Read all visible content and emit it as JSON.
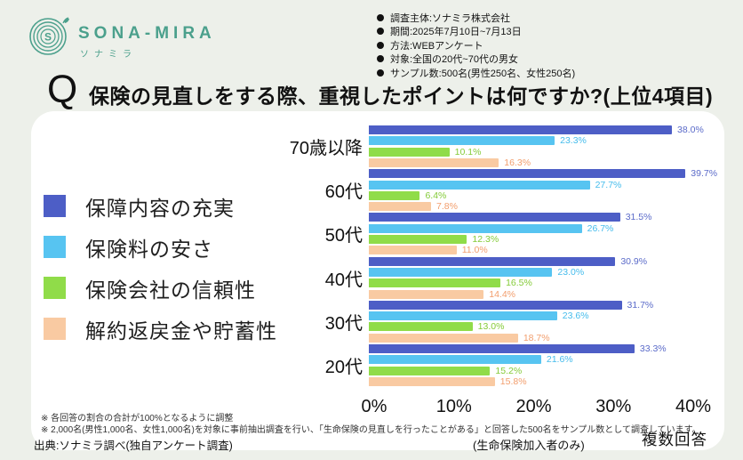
{
  "colors": {
    "page_bg": "#edf0ea",
    "card_bg": "#ffffff",
    "brand_teal": "#4ba08c",
    "text_dark": "#111111"
  },
  "header": {
    "logo": {
      "brand": "SONA-MIRA",
      "brand_kana": "ソナミラ"
    },
    "survey_details": [
      "調査主体:ソナミラ株式会社",
      "期間:2025年7月10日~7月13日",
      "方法:WEBアンケート",
      "対象:全国の20代~70代の男女",
      "サンプル数:500名(男性250名、女性250名)"
    ],
    "q_mark": "Q",
    "title": "保険の見直しをする際、重視したポイントは何ですか?(上位4項目)"
  },
  "chart_data": {
    "type": "bar",
    "orientation": "horizontal",
    "title": "保険の見直しをする際、重視したポイントは何ですか?(上位4項目)",
    "categories": [
      "70歳以降",
      "60代",
      "50代",
      "40代",
      "30代",
      "20代"
    ],
    "series": [
      {
        "name": "保障内容の充実",
        "color": "#4d5ec6",
        "label_color": "#5b6bc9",
        "values": [
          38.0,
          39.7,
          31.5,
          30.9,
          31.7,
          33.3
        ]
      },
      {
        "name": "保険料の安さ",
        "color": "#57c4f1",
        "label_color": "#45bcec",
        "values": [
          23.3,
          27.7,
          26.7,
          23.0,
          23.6,
          21.6
        ]
      },
      {
        "name": "保険会社の信頼性",
        "color": "#90dc49",
        "label_color": "#84cb38",
        "values": [
          10.1,
          6.4,
          12.3,
          16.5,
          13.0,
          15.2
        ]
      },
      {
        "name": "解約返戻金や貯蓄性",
        "color": "#f9caa2",
        "label_color": "#f29e6d",
        "values": [
          16.3,
          7.8,
          11.0,
          14.4,
          18.7,
          15.8
        ]
      }
    ],
    "x_ticks": [
      "0%",
      "10%",
      "20%",
      "30%",
      "40%"
    ],
    "xlim": [
      0,
      40
    ],
    "value_suffix": "%",
    "legend_position": "left",
    "grid": false
  },
  "footer": {
    "notes": [
      "※ 各回答の割合の合計が100%となるように調整",
      "※ 2,000名(男性1,000名、女性1,000名)を対象に事前抽出調査を行い、「生命保険の見直しを行ったことがある」と回答した500名をサンプル数として調査しています。"
    ],
    "source": "出典:ソナミラ調べ(独自アンケート調査)",
    "subject_note": "(生命保険加入者のみ)",
    "answer_type": "複数回答"
  }
}
